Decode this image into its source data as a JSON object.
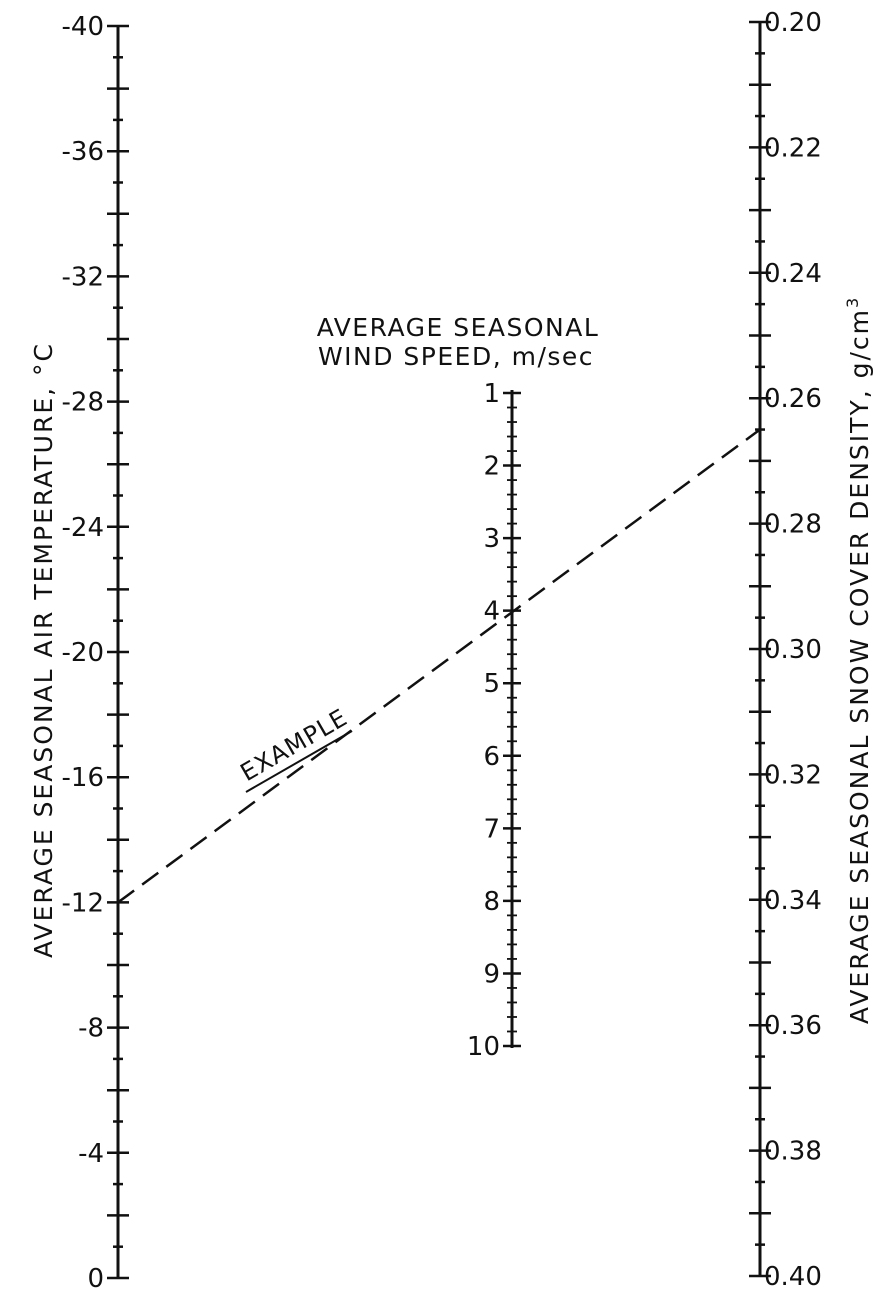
{
  "left_axis": {
    "title": "AVERAGE SEASONAL AIR TEMPERATURE, °C",
    "ticks": [
      "-40",
      "-36",
      "-32",
      "-28",
      "-24",
      "-20",
      "-16",
      "-12",
      "-8",
      "-4",
      "0"
    ]
  },
  "middle_axis": {
    "title_line1": "AVERAGE SEASONAL",
    "title_line2": "WIND SPEED, m/sec",
    "ticks": [
      "1",
      "2",
      "3",
      "4",
      "5",
      "6",
      "7",
      "8",
      "9",
      "10"
    ]
  },
  "right_axis": {
    "title": "AVERAGE SEASONAL SNOW COVER DENSITY, g/cm",
    "title_superscript": "3",
    "ticks": [
      "0.20",
      "0.22",
      "0.24",
      "0.26",
      "0.28",
      "0.30",
      "0.32",
      "0.34",
      "0.36",
      "0.38",
      "0.40"
    ]
  },
  "example": {
    "label": "EXAMPLE",
    "air_temperature_c": -12,
    "wind_speed_m_per_sec": 4,
    "snow_cover_density_g_cm3": 0.265
  },
  "chart_data": {
    "type": "nomogram",
    "scales": [
      {
        "name": "AVERAGE SEASONAL AIR TEMPERATURE, °C",
        "range": [
          -40,
          0
        ]
      },
      {
        "name": "AVERAGE SEASONAL WIND SPEED, m/sec",
        "range": [
          1,
          10
        ]
      },
      {
        "name": "AVERAGE SEASONAL SNOW COVER DENSITY, g/cm3",
        "range": [
          0.2,
          0.4
        ]
      }
    ],
    "example_line": {
      "air_temperature": -12,
      "wind_speed": 4,
      "snow_cover_density": 0.265
    }
  }
}
